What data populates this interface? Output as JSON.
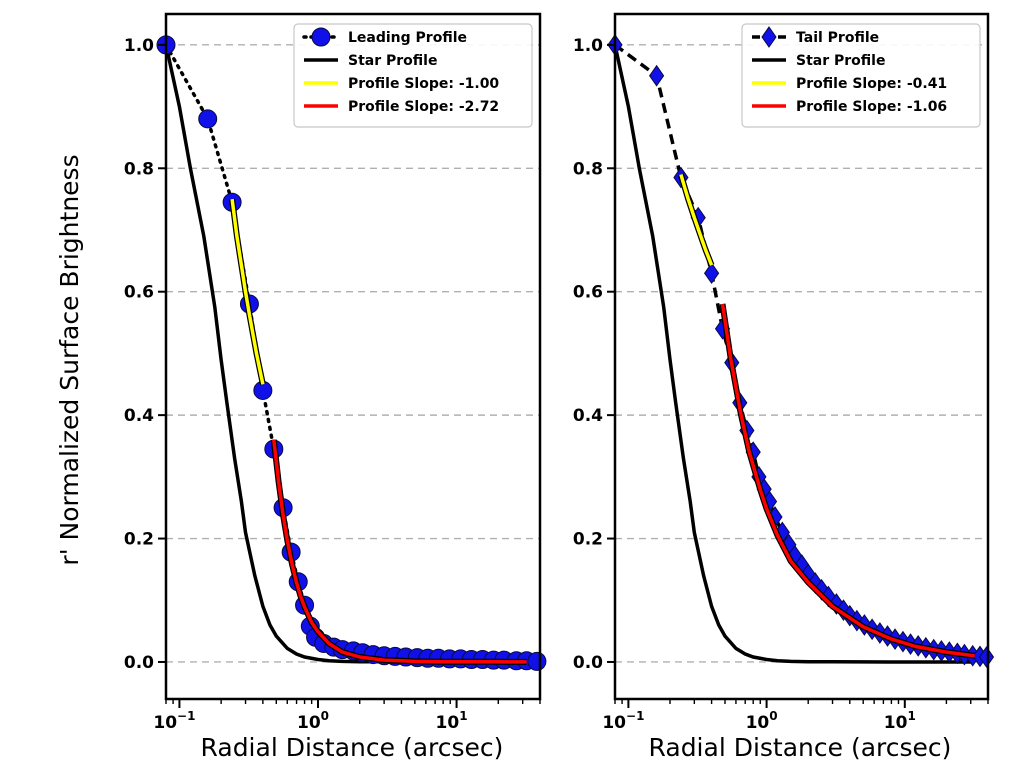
{
  "figure": {
    "ylabel": "r' Normalized Surface Brightness",
    "xlabel": "Radial Distance (arcsec)"
  },
  "chart_data": [
    {
      "type": "line",
      "panel": "left",
      "xscale": "log",
      "xlim": [
        0.08,
        40
      ],
      "ylim": [
        -0.06,
        1.05
      ],
      "xticks": [
        {
          "value": 0.1,
          "base": "10",
          "exp": "−1"
        },
        {
          "value": 1,
          "base": "10",
          "exp": "0"
        },
        {
          "value": 10,
          "base": "10",
          "exp": "1"
        }
      ],
      "yticks": [
        0.0,
        0.2,
        0.4,
        0.6,
        0.8,
        1.0
      ],
      "ytick_labels": [
        "0.0",
        "0.2",
        "0.4",
        "0.6",
        "0.8",
        "1.0"
      ],
      "grid": "horizontal dashed",
      "legend_position": "top-right",
      "series": [
        {
          "name": "Leading Profile",
          "color": "#1010e8",
          "style": "dotted-circles",
          "x": [
            0.08,
            0.16,
            0.24,
            0.32,
            0.4,
            0.48,
            0.56,
            0.64,
            0.72,
            0.8,
            0.88,
            0.96,
            1.1,
            1.3,
            1.5,
            1.8,
            2.1,
            2.5,
            3.0,
            3.6,
            4.3,
            5.2,
            6.2,
            7.4,
            8.9,
            10.7,
            12.8,
            15.4,
            18.5,
            22,
            27,
            32,
            38
          ],
          "y": [
            1.0,
            0.88,
            0.745,
            0.58,
            0.44,
            0.345,
            0.25,
            0.178,
            0.13,
            0.092,
            0.058,
            0.04,
            0.03,
            0.024,
            0.02,
            0.018,
            0.015,
            0.012,
            0.01,
            0.009,
            0.008,
            0.007,
            0.006,
            0.006,
            0.005,
            0.005,
            0.004,
            0.004,
            0.003,
            0.003,
            0.002,
            0.002,
            0.001
          ]
        },
        {
          "name": "Star Profile",
          "color": "#000000",
          "style": "solid",
          "x": [
            0.08,
            0.1,
            0.12,
            0.15,
            0.18,
            0.2,
            0.22,
            0.25,
            0.28,
            0.3,
            0.35,
            0.4,
            0.45,
            0.5,
            0.6,
            0.7,
            0.8,
            1.0,
            1.2,
            1.5,
            2,
            3,
            5,
            10,
            20,
            32
          ],
          "y": [
            1.0,
            0.9,
            0.8,
            0.69,
            0.575,
            0.49,
            0.42,
            0.33,
            0.26,
            0.21,
            0.14,
            0.09,
            0.06,
            0.042,
            0.022,
            0.013,
            0.008,
            0.004,
            0.002,
            0.001,
            0.0005,
            0.0002,
            0.0001,
            0.0,
            0.0,
            0.0
          ]
        },
        {
          "name": "Profile Slope: -1.00",
          "color": "#ffff00",
          "style": "fit",
          "x": [
            0.24,
            0.26,
            0.28,
            0.3,
            0.32,
            0.34,
            0.36,
            0.38,
            0.4
          ],
          "y": [
            0.75,
            0.69,
            0.643,
            0.6,
            0.563,
            0.53,
            0.5,
            0.474,
            0.45
          ]
        },
        {
          "name": "Profile Slope: -2.72",
          "color": "#ff0000",
          "style": "fit",
          "x": [
            0.48,
            0.52,
            0.56,
            0.6,
            0.65,
            0.7,
            0.75,
            0.8,
            0.9,
            1.0,
            1.2,
            1.5,
            2,
            3,
            5,
            8,
            12,
            20,
            32
          ],
          "y": [
            0.36,
            0.292,
            0.238,
            0.197,
            0.158,
            0.129,
            0.106,
            0.089,
            0.064,
            0.049,
            0.03,
            0.016,
            0.008,
            0.003,
            0.001,
            0.0005,
            0.0003,
            0.0002,
            0.0001
          ]
        }
      ]
    },
    {
      "type": "line",
      "panel": "right",
      "xscale": "log",
      "xlim": [
        0.08,
        40
      ],
      "ylim": [
        -0.06,
        1.05
      ],
      "xticks": [
        {
          "value": 0.1,
          "base": "10",
          "exp": "−1"
        },
        {
          "value": 1,
          "base": "10",
          "exp": "0"
        },
        {
          "value": 10,
          "base": "10",
          "exp": "1"
        }
      ],
      "yticks": [
        0.0,
        0.2,
        0.4,
        0.6,
        0.8,
        1.0
      ],
      "ytick_labels": [
        "0.0",
        "0.2",
        "0.4",
        "0.6",
        "0.8",
        "1.0"
      ],
      "grid": "horizontal dashed",
      "legend_position": "top-right",
      "series": [
        {
          "name": "Tail Profile",
          "color": "#1010e8",
          "style": "dashed-diamonds",
          "x": [
            0.08,
            0.16,
            0.24,
            0.32,
            0.4,
            0.48,
            0.56,
            0.64,
            0.72,
            0.8,
            0.88,
            0.96,
            1.05,
            1.15,
            1.3,
            1.45,
            1.6,
            1.8,
            2.0,
            2.25,
            2.5,
            2.8,
            3.2,
            3.6,
            4.0,
            4.5,
            5.1,
            5.8,
            6.6,
            7.5,
            8.5,
            9.7,
            11,
            12.5,
            14.2,
            16.2,
            18.4,
            21,
            24,
            27,
            31,
            35,
            39
          ],
          "y": [
            1.0,
            0.95,
            0.785,
            0.72,
            0.63,
            0.54,
            0.485,
            0.42,
            0.375,
            0.34,
            0.3,
            0.28,
            0.26,
            0.235,
            0.21,
            0.19,
            0.172,
            0.157,
            0.142,
            0.128,
            0.117,
            0.106,
            0.094,
            0.084,
            0.075,
            0.067,
            0.06,
            0.053,
            0.047,
            0.042,
            0.037,
            0.033,
            0.029,
            0.026,
            0.023,
            0.02,
            0.018,
            0.016,
            0.014,
            0.012,
            0.01,
            0.009,
            0.008
          ]
        },
        {
          "name": "Star Profile",
          "color": "#000000",
          "style": "solid",
          "x": [
            0.08,
            0.1,
            0.12,
            0.15,
            0.18,
            0.2,
            0.22,
            0.25,
            0.28,
            0.3,
            0.35,
            0.4,
            0.45,
            0.5,
            0.6,
            0.7,
            0.8,
            1.0,
            1.2,
            1.5,
            2,
            3,
            5,
            10,
            20,
            32
          ],
          "y": [
            1.0,
            0.9,
            0.8,
            0.69,
            0.575,
            0.49,
            0.42,
            0.33,
            0.26,
            0.21,
            0.14,
            0.09,
            0.06,
            0.042,
            0.022,
            0.013,
            0.008,
            0.004,
            0.002,
            0.001,
            0.0005,
            0.0002,
            0.0001,
            0.0,
            0.0,
            0.0
          ]
        },
        {
          "name": "Profile Slope: -0.41",
          "color": "#ffff00",
          "style": "fit",
          "x": [
            0.24,
            0.27,
            0.3,
            0.33,
            0.36,
            0.4
          ],
          "y": [
            0.79,
            0.751,
            0.72,
            0.693,
            0.669,
            0.643
          ]
        },
        {
          "name": "Profile Slope: -1.06",
          "color": "#ff0000",
          "style": "fit",
          "x": [
            0.48,
            0.55,
            0.65,
            0.75,
            0.9,
            1.0,
            1.2,
            1.5,
            2,
            3,
            5,
            8,
            12,
            20,
            32
          ],
          "y": [
            0.58,
            0.492,
            0.403,
            0.34,
            0.279,
            0.248,
            0.205,
            0.163,
            0.129,
            0.09,
            0.057,
            0.037,
            0.025,
            0.016,
            0.01
          ]
        }
      ]
    }
  ]
}
